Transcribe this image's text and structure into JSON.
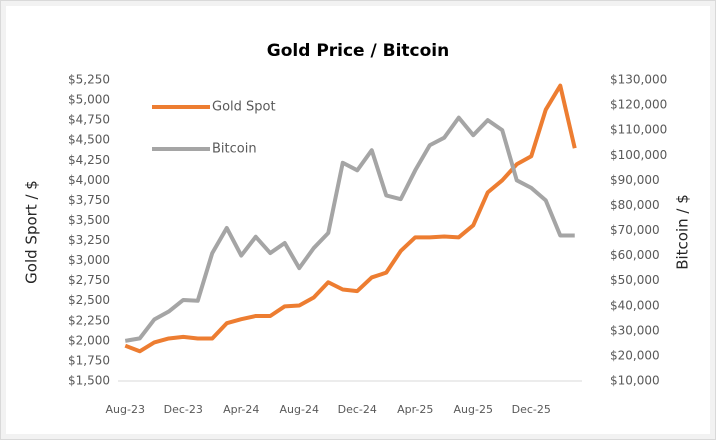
{
  "chart_data": {
    "type": "line",
    "title": "Gold Price / Bitcoin",
    "ylabel": "Gold Sport / $",
    "y2label": "Bitcoin / $",
    "categories": [
      "Aug-23",
      null,
      null,
      null,
      "Dec-23",
      null,
      null,
      null,
      "Apr-24",
      null,
      null,
      null,
      "Aug-24",
      null,
      null,
      null,
      "Dec-24",
      null,
      null,
      null,
      "Apr-25",
      null,
      null,
      null,
      "Aug-25",
      null,
      null,
      null,
      "Dec-25",
      null,
      null,
      null
    ],
    "series": [
      {
        "name": "Gold Spot",
        "color": "#ed7d31",
        "axis": "y",
        "values": [
          1940,
          1870,
          1980,
          2030,
          2050,
          2030,
          2030,
          2220,
          2270,
          2310,
          2310,
          2430,
          2440,
          2540,
          2730,
          2640,
          2620,
          2790,
          2850,
          3120,
          3290,
          3290,
          3300,
          3290,
          3440,
          3850,
          4000,
          4200,
          4300,
          4880,
          5180,
          4400
        ]
      },
      {
        "name": "Bitcoin",
        "color": "#a5a5a5",
        "axis": "y2",
        "values": [
          26000,
          27000,
          34500,
          37700,
          42300,
          42000,
          61000,
          71000,
          60000,
          67500,
          61000,
          65000,
          55000,
          63000,
          69000,
          97000,
          94000,
          102000,
          84000,
          82500,
          94000,
          104000,
          107000,
          115000,
          108000,
          114000,
          110000,
          90000,
          87000,
          82000,
          68000,
          68000
        ]
      }
    ],
    "ylim": [
      1500,
      5250
    ],
    "yticks": [
      {
        "value": 1500,
        "label": "$1,500"
      },
      {
        "value": 1750,
        "label": "$1,750"
      },
      {
        "value": 2000,
        "label": "$2,000"
      },
      {
        "value": 2250,
        "label": "$2,250"
      },
      {
        "value": 2500,
        "label": "$2,500"
      },
      {
        "value": 2750,
        "label": "$2,750"
      },
      {
        "value": 3000,
        "label": "$3,000"
      },
      {
        "value": 3250,
        "label": "$3,250"
      },
      {
        "value": 3500,
        "label": "$3,500"
      },
      {
        "value": 3750,
        "label": "$3,750"
      },
      {
        "value": 4000,
        "label": "$4,000"
      },
      {
        "value": 4250,
        "label": "$4,250"
      },
      {
        "value": 4500,
        "label": "$4,500"
      },
      {
        "value": 4750,
        "label": "$4,750"
      },
      {
        "value": 5000,
        "label": "$5,000"
      },
      {
        "value": 5250,
        "label": "$5,250"
      }
    ],
    "y2lim": [
      10000,
      130000
    ],
    "y2ticks": [
      {
        "value": 10000,
        "label": "$10,000"
      },
      {
        "value": 20000,
        "label": "$20,000"
      },
      {
        "value": 30000,
        "label": "$30,000"
      },
      {
        "value": 40000,
        "label": "$40,000"
      },
      {
        "value": 50000,
        "label": "$50,000"
      },
      {
        "value": 60000,
        "label": "$60,000"
      },
      {
        "value": 70000,
        "label": "$70,000"
      },
      {
        "value": 80000,
        "label": "$80,000"
      },
      {
        "value": 90000,
        "label": "$90,000"
      },
      {
        "value": 100000,
        "label": "$100,000"
      },
      {
        "value": 110000,
        "label": "$110,000"
      },
      {
        "value": 120000,
        "label": "$120,000"
      },
      {
        "value": 130000,
        "label": "$130,000"
      }
    ],
    "legend": "upper left"
  }
}
